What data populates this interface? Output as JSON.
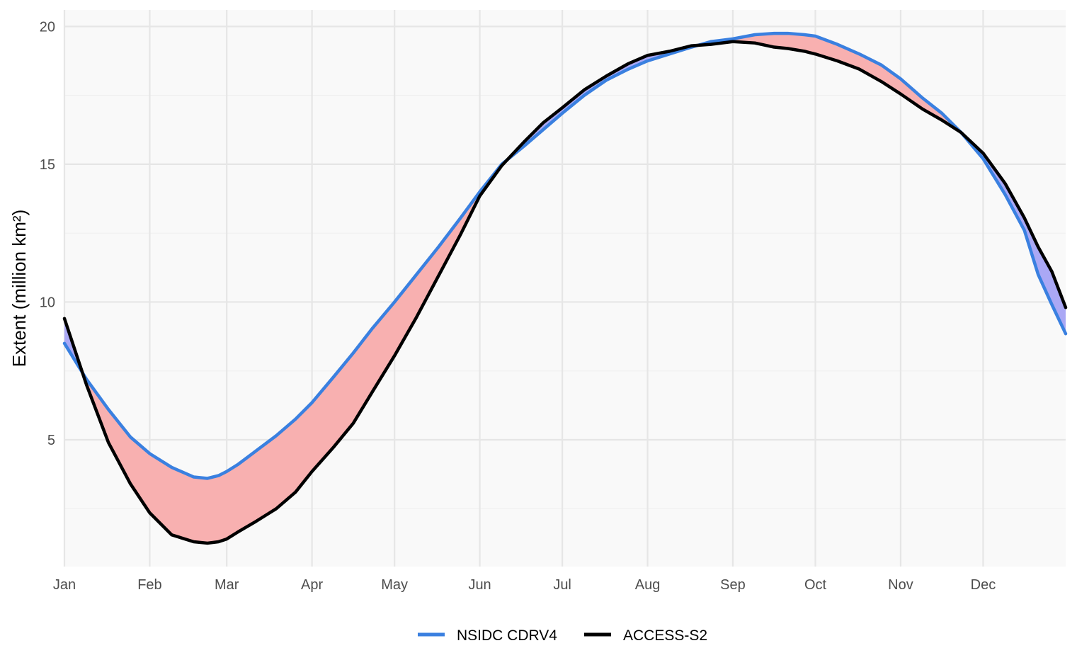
{
  "chart_data": {
    "type": "line",
    "title": "",
    "xlabel": "",
    "ylabel": "Extent (million km²)",
    "x_tick_labels": [
      "Jan",
      "Feb",
      "Mar",
      "Apr",
      "May",
      "Jun",
      "Jul",
      "Aug",
      "Sep",
      "Oct",
      "Nov",
      "Dec"
    ],
    "x_tick_days": [
      1,
      32,
      60,
      91,
      121,
      152,
      182,
      213,
      244,
      274,
      305,
      335
    ],
    "xlim": [
      1,
      365
    ],
    "y_ticks": [
      5,
      10,
      15,
      20
    ],
    "ylim": [
      0.4,
      20.6
    ],
    "grid": true,
    "legend_position": "bottom",
    "fill_colors": {
      "series1_above": "#f8b0b0",
      "series2_above": "#aaa8f5"
    },
    "series": [
      {
        "name": "NSIDC CDRV4",
        "color": "#3a80e0",
        "x": [
          1,
          9,
          17,
          25,
          32,
          40,
          48,
          53,
          57,
          60,
          64,
          70,
          78,
          85,
          91,
          99,
          106,
          113,
          121,
          129,
          137,
          145,
          152,
          160,
          168,
          175,
          182,
          190,
          198,
          206,
          213,
          221,
          229,
          236,
          244,
          252,
          259,
          264,
          270,
          274,
          282,
          290,
          298,
          305,
          313,
          320,
          327,
          335,
          343,
          350,
          355,
          360,
          365
        ],
        "y": [
          8.5,
          7.2,
          6.1,
          5.1,
          4.5,
          4.0,
          3.65,
          3.6,
          3.7,
          3.85,
          4.1,
          4.55,
          5.15,
          5.75,
          6.35,
          7.3,
          8.15,
          9.05,
          10.0,
          11.0,
          12.0,
          13.05,
          14.0,
          15.0,
          15.65,
          16.25,
          16.85,
          17.5,
          18.05,
          18.45,
          18.75,
          19.0,
          19.25,
          19.45,
          19.55,
          19.7,
          19.75,
          19.75,
          19.7,
          19.65,
          19.35,
          19.0,
          18.6,
          18.1,
          17.4,
          16.85,
          16.15,
          15.2,
          13.9,
          12.6,
          11.0,
          9.9,
          8.85
        ]
      },
      {
        "name": "ACCESS-S2",
        "color": "#000000",
        "x": [
          1,
          9,
          17,
          25,
          32,
          40,
          48,
          53,
          57,
          60,
          64,
          70,
          78,
          85,
          91,
          99,
          106,
          113,
          121,
          129,
          137,
          145,
          152,
          160,
          168,
          175,
          182,
          190,
          198,
          206,
          213,
          221,
          229,
          236,
          244,
          252,
          259,
          264,
          270,
          274,
          282,
          290,
          298,
          305,
          313,
          320,
          327,
          335,
          343,
          350,
          355,
          360,
          365
        ],
        "y": [
          9.4,
          7.0,
          4.9,
          3.4,
          2.35,
          1.55,
          1.3,
          1.25,
          1.3,
          1.4,
          1.65,
          2.0,
          2.5,
          3.1,
          3.85,
          4.75,
          5.6,
          6.75,
          8.05,
          9.45,
          10.95,
          12.45,
          13.85,
          14.95,
          15.8,
          16.5,
          17.05,
          17.7,
          18.2,
          18.65,
          18.95,
          19.1,
          19.3,
          19.35,
          19.45,
          19.4,
          19.25,
          19.2,
          19.1,
          19.0,
          18.75,
          18.45,
          18.0,
          17.55,
          17.0,
          16.6,
          16.15,
          15.4,
          14.3,
          13.05,
          12.0,
          11.1,
          9.8
        ]
      }
    ]
  }
}
